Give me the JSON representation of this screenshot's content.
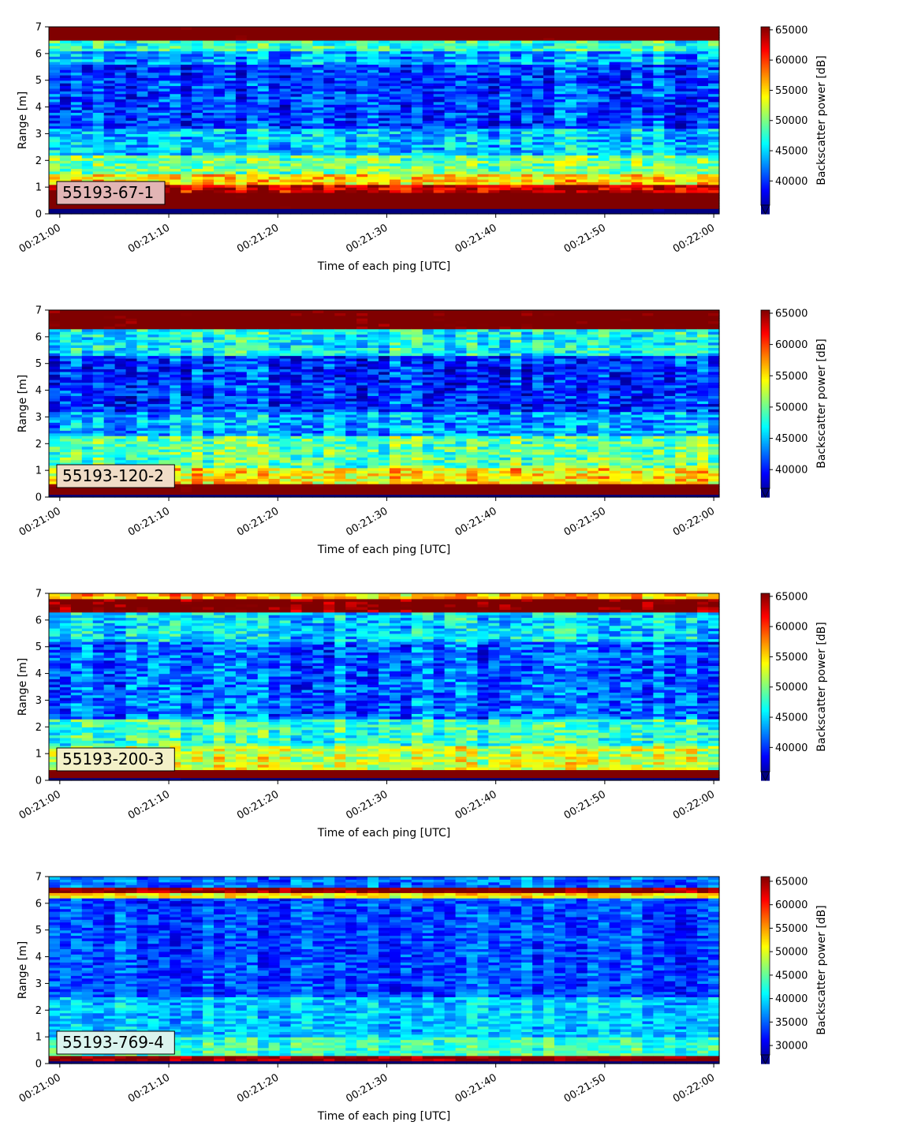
{
  "chart_data": [
    {
      "type": "heatmap",
      "label": "55193-67-1",
      "xlabel": "Time of each ping [UTC]",
      "ylabel": "Range [m]",
      "x_range": [
        "00:21:00",
        "00:22:00"
      ],
      "x_ticks": [
        "00:21:00",
        "00:21:10",
        "00:21:20",
        "00:21:30",
        "00:21:40",
        "00:21:50",
        "00:22:00"
      ],
      "ylim": [
        0,
        7
      ],
      "y_ticks": [
        "0",
        "1",
        "2",
        "3",
        "4",
        "5",
        "6",
        "7"
      ],
      "colorbar_label": "Backscatter power [dB]",
      "colorbar_range": [
        36000,
        65500
      ],
      "colorbar_ticks": [
        "40000",
        "45000",
        "50000",
        "55000",
        "60000",
        "65000"
      ],
      "colormap": "jet",
      "label_box_color": "#e2b5b5",
      "bands": [
        {
          "y0": 0.25,
          "y1": 0.85,
          "level": 70000
        },
        {
          "y0": 0.85,
          "y1": 1.15,
          "level": 63000
        },
        {
          "y0": 1.15,
          "y1": 1.5,
          "level": 55500
        },
        {
          "y0": 1.5,
          "y1": 2.2,
          "level": 50500
        },
        {
          "y0": 2.2,
          "y1": 3.2,
          "level": 45500
        },
        {
          "y0": 3.2,
          "y1": 5.6,
          "level": 41500
        },
        {
          "y0": 5.6,
          "y1": 6.1,
          "level": 44500
        },
        {
          "y0": 6.1,
          "y1": 6.5,
          "level": 48500
        },
        {
          "y0": 6.5,
          "y1": 7.0,
          "level": 70000
        }
      ]
    },
    {
      "type": "heatmap",
      "label": "55193-120-2",
      "xlabel": "Time of each ping [UTC]",
      "ylabel": "Range [m]",
      "x_range": [
        "00:21:00",
        "00:22:00"
      ],
      "x_ticks": [
        "00:21:00",
        "00:21:10",
        "00:21:20",
        "00:21:30",
        "00:21:40",
        "00:21:50",
        "00:22:00"
      ],
      "ylim": [
        0,
        7
      ],
      "y_ticks": [
        "0",
        "1",
        "2",
        "3",
        "4",
        "5",
        "6",
        "7"
      ],
      "colorbar_label": "Backscatter power [dB]",
      "colorbar_range": [
        37000,
        65500
      ],
      "colorbar_ticks": [
        "40000",
        "45000",
        "50000",
        "55000",
        "60000",
        "65000"
      ],
      "colormap": "jet",
      "label_box_color": "#f0dcc6",
      "bands": [
        {
          "y0": 0.15,
          "y1": 0.5,
          "level": 70000
        },
        {
          "y0": 0.5,
          "y1": 1.1,
          "level": 55500
        },
        {
          "y0": 1.1,
          "y1": 2.3,
          "level": 50500
        },
        {
          "y0": 2.3,
          "y1": 3.2,
          "level": 45500
        },
        {
          "y0": 3.2,
          "y1": 5.3,
          "level": 42000
        },
        {
          "y0": 5.3,
          "y1": 6.3,
          "level": 48000
        },
        {
          "y0": 6.3,
          "y1": 7.0,
          "level": 69000
        }
      ]
    },
    {
      "type": "heatmap",
      "label": "55193-200-3",
      "xlabel": "Time of each ping [UTC]",
      "ylabel": "Range [m]",
      "x_range": [
        "00:21:00",
        "00:22:00"
      ],
      "x_ticks": [
        "00:21:00",
        "00:21:10",
        "00:21:20",
        "00:21:30",
        "00:21:40",
        "00:21:50",
        "00:22:00"
      ],
      "ylim": [
        0,
        7
      ],
      "y_ticks": [
        "0",
        "1",
        "2",
        "3",
        "4",
        "5",
        "6",
        "7"
      ],
      "colorbar_label": "Backscatter power [dB]",
      "colorbar_range": [
        36000,
        65500
      ],
      "colorbar_ticks": [
        "40000",
        "45000",
        "50000",
        "55000",
        "60000",
        "65000"
      ],
      "colormap": "jet",
      "label_box_color": "#f3f0c8",
      "bands": [
        {
          "y0": 0.15,
          "y1": 0.4,
          "level": 70000
        },
        {
          "y0": 0.4,
          "y1": 1.3,
          "level": 53000
        },
        {
          "y0": 1.3,
          "y1": 2.3,
          "level": 48500
        },
        {
          "y0": 2.3,
          "y1": 5.2,
          "level": 42500
        },
        {
          "y0": 5.2,
          "y1": 6.3,
          "level": 46000
        },
        {
          "y0": 6.3,
          "y1": 6.8,
          "level": 67000
        },
        {
          "y0": 6.8,
          "y1": 7.0,
          "level": 56000
        }
      ]
    },
    {
      "type": "heatmap",
      "label": "55193-769-4",
      "xlabel": "Time of each ping [UTC]",
      "ylabel": "Range [m]",
      "x_range": [
        "00:21:00",
        "00:22:00"
      ],
      "x_ticks": [
        "00:21:00",
        "00:21:10",
        "00:21:20",
        "00:21:30",
        "00:21:40",
        "00:21:50",
        "00:22:00"
      ],
      "ylim": [
        0,
        7
      ],
      "y_ticks": [
        "0",
        "1",
        "2",
        "3",
        "4",
        "5",
        "6",
        "7"
      ],
      "colorbar_label": "Backscatter power [dB]",
      "colorbar_range": [
        28000,
        66000
      ],
      "colorbar_ticks": [
        "30000",
        "35000",
        "40000",
        "45000",
        "50000",
        "55000",
        "60000",
        "65000"
      ],
      "colormap": "jet",
      "label_box_color": "#daf4ee",
      "bands": [
        {
          "y0": 0.15,
          "y1": 0.35,
          "level": 66000
        },
        {
          "y0": 0.35,
          "y1": 1.0,
          "level": 44500
        },
        {
          "y0": 1.0,
          "y1": 2.5,
          "level": 40000
        },
        {
          "y0": 2.5,
          "y1": 6.2,
          "level": 35500
        },
        {
          "y0": 6.2,
          "y1": 6.4,
          "level": 52000
        },
        {
          "y0": 6.4,
          "y1": 6.6,
          "level": 66000
        },
        {
          "y0": 6.6,
          "y1": 7.0,
          "level": 37000
        }
      ]
    }
  ]
}
